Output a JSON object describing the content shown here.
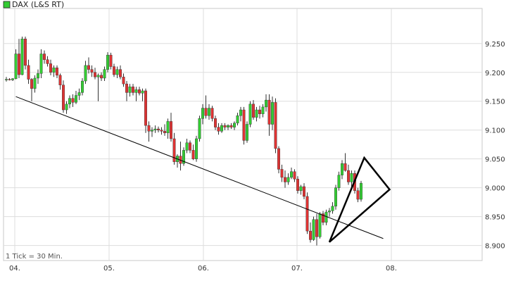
{
  "chart_data": {
    "type": "candlestick",
    "legend": {
      "label": "DAX (L&S RT)",
      "color": "#33cc33"
    },
    "footnote": "1 Tick = 30 Min.",
    "x_ticks": [
      "04.",
      "05.",
      "06.",
      "07.",
      "08."
    ],
    "y_ticks": [
      "9.250",
      "9.200",
      "9.150",
      "9.100",
      "9.050",
      "9.000",
      "8.950",
      "8.900"
    ],
    "y_tick_values": [
      9250,
      9200,
      9150,
      9100,
      9050,
      9000,
      8950,
      8900
    ],
    "ylim": [
      8880,
      9290
    ],
    "grid": true,
    "colors": {
      "up": "#33cc33",
      "down": "#dd3333",
      "grid": "#dddddd",
      "line": "#000000"
    },
    "candles": [
      {
        "o": 9188,
        "h": 9192,
        "l": 9184,
        "c": 9188
      },
      {
        "o": 9188,
        "h": 9190,
        "l": 9186,
        "c": 9187
      },
      {
        "o": 9187,
        "h": 9190,
        "l": 9185,
        "c": 9189
      },
      {
        "o": 9189,
        "h": 9240,
        "l": 9188,
        "c": 9232
      },
      {
        "o": 9232,
        "h": 9258,
        "l": 9190,
        "c": 9196
      },
      {
        "o": 9196,
        "h": 9262,
        "l": 9195,
        "c": 9258
      },
      {
        "o": 9258,
        "h": 9262,
        "l": 9205,
        "c": 9212
      },
      {
        "o": 9212,
        "h": 9222,
        "l": 9180,
        "c": 9188
      },
      {
        "o": 9188,
        "h": 9190,
        "l": 9150,
        "c": 9172
      },
      {
        "o": 9172,
        "h": 9195,
        "l": 9165,
        "c": 9190
      },
      {
        "o": 9190,
        "h": 9205,
        "l": 9180,
        "c": 9198
      },
      {
        "o": 9198,
        "h": 9240,
        "l": 9190,
        "c": 9232
      },
      {
        "o": 9232,
        "h": 9238,
        "l": 9215,
        "c": 9222
      },
      {
        "o": 9222,
        "h": 9228,
        "l": 9210,
        "c": 9215
      },
      {
        "o": 9215,
        "h": 9222,
        "l": 9195,
        "c": 9200
      },
      {
        "o": 9200,
        "h": 9212,
        "l": 9192,
        "c": 9208
      },
      {
        "o": 9208,
        "h": 9212,
        "l": 9190,
        "c": 9195
      },
      {
        "o": 9195,
        "h": 9198,
        "l": 9170,
        "c": 9178
      },
      {
        "o": 9178,
        "h": 9186,
        "l": 9130,
        "c": 9135
      },
      {
        "o": 9135,
        "h": 9150,
        "l": 9128,
        "c": 9145
      },
      {
        "o": 9145,
        "h": 9160,
        "l": 9138,
        "c": 9155
      },
      {
        "o": 9155,
        "h": 9162,
        "l": 9140,
        "c": 9148
      },
      {
        "o": 9148,
        "h": 9168,
        "l": 9145,
        "c": 9160
      },
      {
        "o": 9160,
        "h": 9172,
        "l": 9152,
        "c": 9165
      },
      {
        "o": 9165,
        "h": 9190,
        "l": 9160,
        "c": 9185
      },
      {
        "o": 9185,
        "h": 9220,
        "l": 9180,
        "c": 9212
      },
      {
        "o": 9212,
        "h": 9226,
        "l": 9198,
        "c": 9205
      },
      {
        "o": 9205,
        "h": 9212,
        "l": 9192,
        "c": 9200
      },
      {
        "o": 9200,
        "h": 9208,
        "l": 9188,
        "c": 9192
      },
      {
        "o": 9192,
        "h": 9198,
        "l": 9150,
        "c": 9195
      },
      {
        "o": 9195,
        "h": 9200,
        "l": 9185,
        "c": 9190
      },
      {
        "o": 9190,
        "h": 9210,
        "l": 9185,
        "c": 9205
      },
      {
        "o": 9205,
        "h": 9235,
        "l": 9200,
        "c": 9230
      },
      {
        "o": 9230,
        "h": 9234,
        "l": 9205,
        "c": 9210
      },
      {
        "o": 9210,
        "h": 9215,
        "l": 9192,
        "c": 9196
      },
      {
        "o": 9196,
        "h": 9210,
        "l": 9190,
        "c": 9205
      },
      {
        "o": 9205,
        "h": 9212,
        "l": 9188,
        "c": 9192
      },
      {
        "o": 9192,
        "h": 9198,
        "l": 9175,
        "c": 9180
      },
      {
        "o": 9180,
        "h": 9185,
        "l": 9150,
        "c": 9165
      },
      {
        "o": 9165,
        "h": 9180,
        "l": 9158,
        "c": 9175
      },
      {
        "o": 9175,
        "h": 9180,
        "l": 9160,
        "c": 9165
      },
      {
        "o": 9165,
        "h": 9175,
        "l": 9150,
        "c": 9170
      },
      {
        "o": 9170,
        "h": 9175,
        "l": 9160,
        "c": 9164
      },
      {
        "o": 9164,
        "h": 9172,
        "l": 9150,
        "c": 9168
      },
      {
        "o": 9168,
        "h": 9172,
        "l": 9095,
        "c": 9108
      },
      {
        "o": 9108,
        "h": 9115,
        "l": 9080,
        "c": 9098
      },
      {
        "o": 9098,
        "h": 9105,
        "l": 9088,
        "c": 9100
      },
      {
        "o": 9100,
        "h": 9108,
        "l": 9095,
        "c": 9102
      },
      {
        "o": 9102,
        "h": 9106,
        "l": 9096,
        "c": 9100
      },
      {
        "o": 9100,
        "h": 9105,
        "l": 9092,
        "c": 9098
      },
      {
        "o": 9098,
        "h": 9110,
        "l": 9090,
        "c": 9095
      },
      {
        "o": 9095,
        "h": 9120,
        "l": 9085,
        "c": 9115
      },
      {
        "o": 9115,
        "h": 9130,
        "l": 9080,
        "c": 9085
      },
      {
        "o": 9085,
        "h": 9095,
        "l": 9040,
        "c": 9045
      },
      {
        "o": 9045,
        "h": 9058,
        "l": 9035,
        "c": 9055
      },
      {
        "o": 9055,
        "h": 9080,
        "l": 9030,
        "c": 9042
      },
      {
        "o": 9042,
        "h": 9070,
        "l": 9038,
        "c": 9065
      },
      {
        "o": 9065,
        "h": 9085,
        "l": 9060,
        "c": 9078
      },
      {
        "o": 9078,
        "h": 9082,
        "l": 9060,
        "c": 9065
      },
      {
        "o": 9065,
        "h": 9075,
        "l": 9048,
        "c": 9050
      },
      {
        "o": 9050,
        "h": 9090,
        "l": 9045,
        "c": 9085
      },
      {
        "o": 9085,
        "h": 9125,
        "l": 9080,
        "c": 9120
      },
      {
        "o": 9120,
        "h": 9145,
        "l": 9110,
        "c": 9138
      },
      {
        "o": 9138,
        "h": 9160,
        "l": 9120,
        "c": 9125
      },
      {
        "o": 9125,
        "h": 9145,
        "l": 9118,
        "c": 9138
      },
      {
        "o": 9138,
        "h": 9142,
        "l": 9115,
        "c": 9120
      },
      {
        "o": 9120,
        "h": 9125,
        "l": 9100,
        "c": 9105
      },
      {
        "o": 9105,
        "h": 9112,
        "l": 9092,
        "c": 9098
      },
      {
        "o": 9098,
        "h": 9112,
        "l": 9095,
        "c": 9108
      },
      {
        "o": 9108,
        "h": 9112,
        "l": 9100,
        "c": 9105
      },
      {
        "o": 9105,
        "h": 9110,
        "l": 9100,
        "c": 9108
      },
      {
        "o": 9108,
        "h": 9112,
        "l": 9102,
        "c": 9105
      },
      {
        "o": 9105,
        "h": 9115,
        "l": 9100,
        "c": 9112
      },
      {
        "o": 9112,
        "h": 9130,
        "l": 9108,
        "c": 9125
      },
      {
        "o": 9125,
        "h": 9140,
        "l": 9115,
        "c": 9135
      },
      {
        "o": 9135,
        "h": 9140,
        "l": 9075,
        "c": 9082
      },
      {
        "o": 9082,
        "h": 9115,
        "l": 9078,
        "c": 9110
      },
      {
        "o": 9110,
        "h": 9150,
        "l": 9105,
        "c": 9145
      },
      {
        "o": 9145,
        "h": 9152,
        "l": 9118,
        "c": 9122
      },
      {
        "o": 9122,
        "h": 9140,
        "l": 9115,
        "c": 9135
      },
      {
        "o": 9135,
        "h": 9142,
        "l": 9120,
        "c": 9128
      },
      {
        "o": 9128,
        "h": 9145,
        "l": 9122,
        "c": 9140
      },
      {
        "o": 9140,
        "h": 9162,
        "l": 9132,
        "c": 9152
      },
      {
        "o": 9152,
        "h": 9162,
        "l": 9090,
        "c": 9110
      },
      {
        "o": 9110,
        "h": 9158,
        "l": 9100,
        "c": 9148
      },
      {
        "o": 9148,
        "h": 9155,
        "l": 9060,
        "c": 9068
      },
      {
        "o": 9068,
        "h": 9072,
        "l": 9025,
        "c": 9032
      },
      {
        "o": 9032,
        "h": 9040,
        "l": 9010,
        "c": 9018
      },
      {
        "o": 9018,
        "h": 9030,
        "l": 9000,
        "c": 9010
      },
      {
        "o": 9010,
        "h": 9025,
        "l": 9005,
        "c": 9018
      },
      {
        "o": 9018,
        "h": 9035,
        "l": 9015,
        "c": 9028
      },
      {
        "o": 9028,
        "h": 9032,
        "l": 9010,
        "c": 9015
      },
      {
        "o": 9015,
        "h": 9020,
        "l": 8990,
        "c": 8995
      },
      {
        "o": 8995,
        "h": 9005,
        "l": 8988,
        "c": 9002
      },
      {
        "o": 9002,
        "h": 9008,
        "l": 8980,
        "c": 8985
      },
      {
        "o": 8985,
        "h": 8992,
        "l": 8920,
        "c": 8925
      },
      {
        "o": 8925,
        "h": 8940,
        "l": 8905,
        "c": 8910
      },
      {
        "o": 8910,
        "h": 8950,
        "l": 8908,
        "c": 8945
      },
      {
        "o": 8945,
        "h": 8955,
        "l": 8900,
        "c": 8915
      },
      {
        "o": 8915,
        "h": 8958,
        "l": 8912,
        "c": 8955
      },
      {
        "o": 8955,
        "h": 8960,
        "l": 8935,
        "c": 8940
      },
      {
        "o": 8940,
        "h": 8962,
        "l": 8935,
        "c": 8958
      },
      {
        "o": 8958,
        "h": 8965,
        "l": 8950,
        "c": 8960
      },
      {
        "o": 8960,
        "h": 8975,
        "l": 8955,
        "c": 8968
      },
      {
        "o": 8968,
        "h": 9005,
        "l": 8962,
        "c": 9000
      },
      {
        "o": 9000,
        "h": 9028,
        "l": 8995,
        "c": 9022
      },
      {
        "o": 9022,
        "h": 9048,
        "l": 9015,
        "c": 9042
      },
      {
        "o": 9042,
        "h": 9060,
        "l": 9028,
        "c": 9030
      },
      {
        "o": 9030,
        "h": 9040,
        "l": 9005,
        "c": 9010
      },
      {
        "o": 9010,
        "h": 9030,
        "l": 9002,
        "c": 9025
      },
      {
        "o": 9025,
        "h": 9030,
        "l": 8990,
        "c": 8995
      },
      {
        "o": 8995,
        "h": 9000,
        "l": 8975,
        "c": 8980
      },
      {
        "o": 8980,
        "h": 9012,
        "l": 8976,
        "c": 9008
      }
    ],
    "trendline": {
      "from": {
        "index": 3,
        "value": 9158
      },
      "to": {
        "index": 119,
        "value": 8912
      }
    },
    "triangle": [
      {
        "index": 102,
        "value": 8906
      },
      {
        "index": 113,
        "value": 9052
      },
      {
        "index": 121,
        "value": 8997
      }
    ]
  }
}
